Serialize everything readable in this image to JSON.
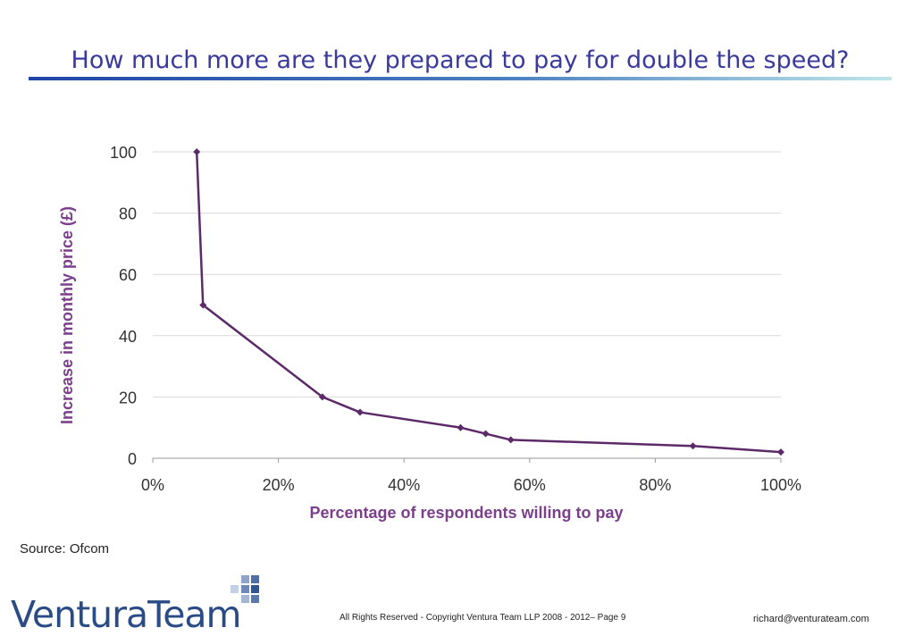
{
  "title": "How much more are they prepared to pay for double the speed?",
  "source": "Source: Ofcom",
  "logo": {
    "text": "VenturaTeam"
  },
  "footer": {
    "copyright": "All Rights Reserved - Copyright Ventura Team LLP 2008 - 2012– Page 9",
    "email": "richard@venturateam.com"
  },
  "colors": {
    "title": "#3a3a9c",
    "series": "#5c2a68",
    "axis_label": "#7b3f8c",
    "grid": "#d9d9d9"
  },
  "chart_data": {
    "type": "line",
    "xlabel": "Percentage of respondents willing to pay",
    "ylabel": "Increase in monthly price (£)",
    "xlim": [
      0,
      100
    ],
    "ylim": [
      0,
      100
    ],
    "xticks": [
      0,
      20,
      40,
      60,
      80,
      100
    ],
    "xtick_labels": [
      "0%",
      "20%",
      "40%",
      "60%",
      "80%",
      "100%"
    ],
    "yticks": [
      0,
      20,
      40,
      60,
      80,
      100
    ],
    "ytick_labels": [
      "0",
      "20",
      "40",
      "60",
      "80",
      "100"
    ],
    "grid": true,
    "series": [
      {
        "x": [
          7,
          8,
          27,
          33,
          49,
          53,
          57,
          86,
          100
        ],
        "y": [
          100,
          50,
          20,
          15,
          10,
          8,
          6,
          4,
          2
        ]
      }
    ]
  }
}
